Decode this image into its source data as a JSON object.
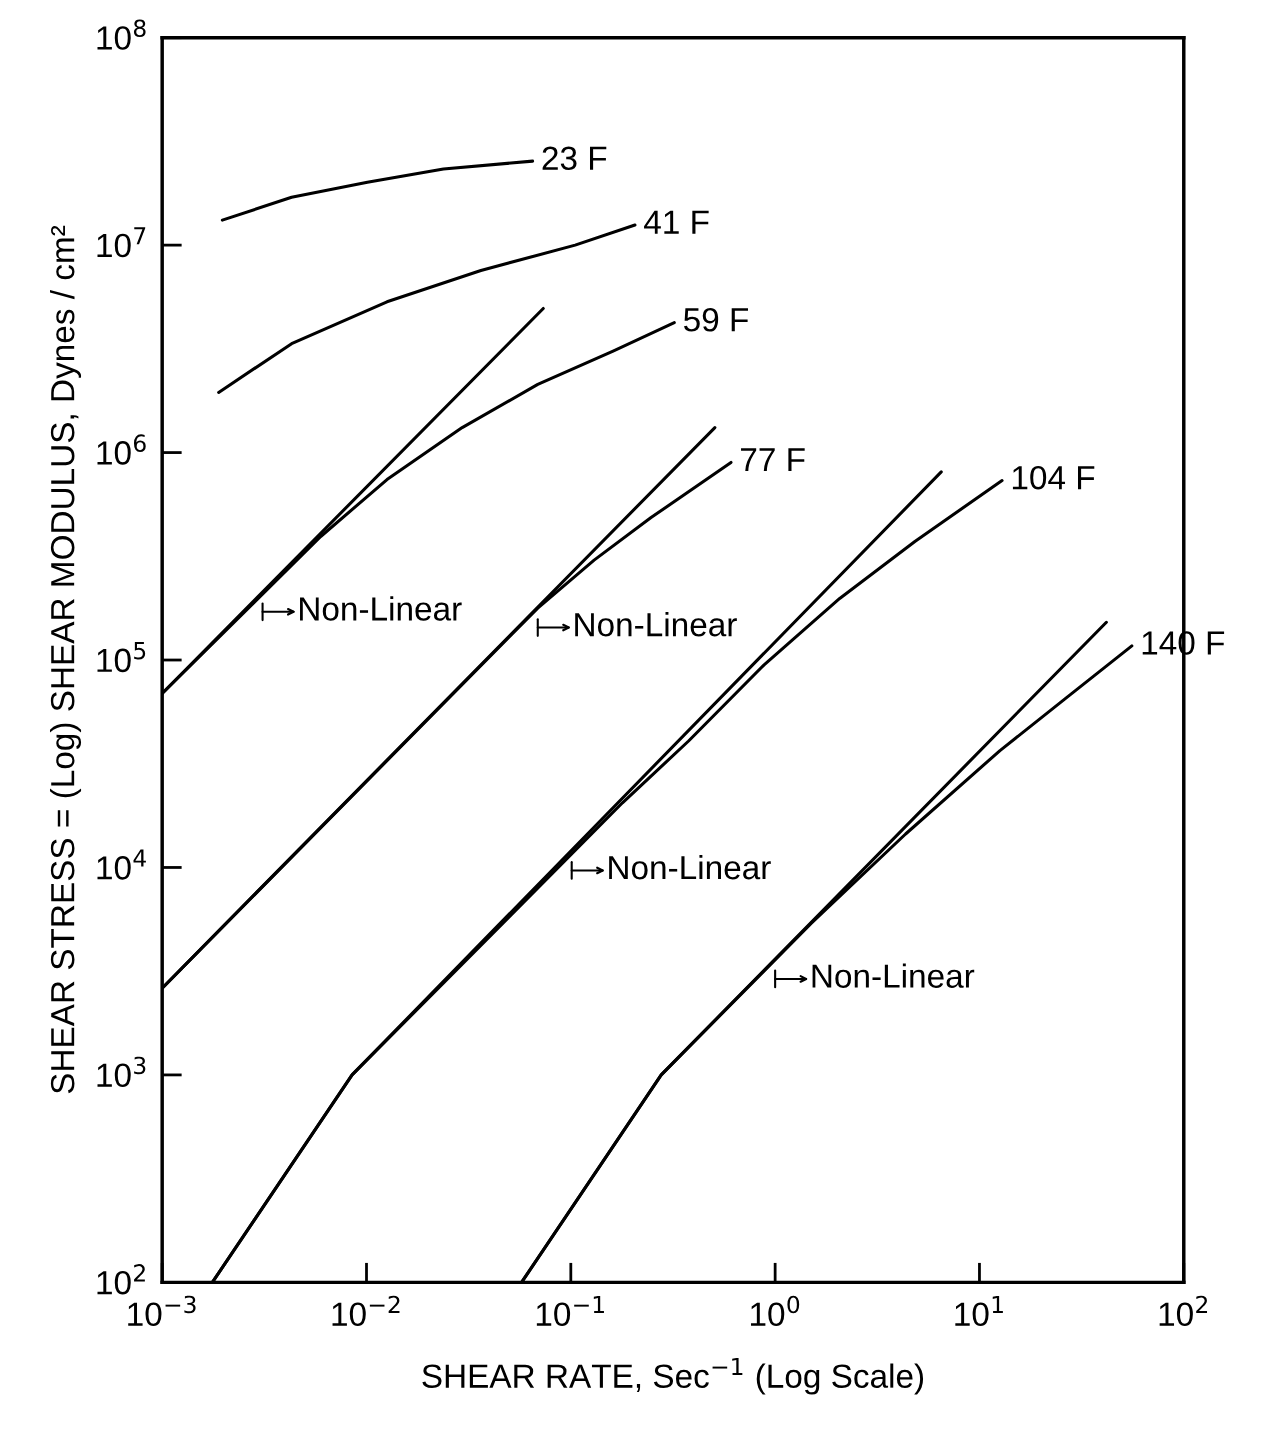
{
  "chart_data": {
    "type": "line",
    "log": "xy",
    "grid": false,
    "legend": false,
    "marker": "none",
    "line_style": "solid",
    "xlabel": "SHEAR RATE, Sec$^{−1}$ (Log Scale)",
    "ylabel": "SHEAR STRESS = (Log) SHEAR MODULUS, Dynes / cm²",
    "xlim": [
      0.001,
      100
    ],
    "ylim": [
      100,
      100000000
    ],
    "xticks": [
      {
        "value": 0.001,
        "label": "10$^{−3}$"
      },
      {
        "value": 0.01,
        "label": "10$^{−2}$"
      },
      {
        "value": 0.1,
        "label": "10$^{−1}$"
      },
      {
        "value": 1,
        "label": "10$^{0}$"
      },
      {
        "value": 10,
        "label": "10$^{1}$"
      },
      {
        "value": 100,
        "label": "10$^{2}$"
      }
    ],
    "yticks": [
      {
        "value": 100,
        "label": "10$^{2}$"
      },
      {
        "value": 1000,
        "label": "10$^{3}$"
      },
      {
        "value": 10000,
        "label": "10$^{4}$"
      },
      {
        "value": 100000,
        "label": "10$^{5}$"
      },
      {
        "value": 1000000,
        "label": "10$^{6}$"
      },
      {
        "value": 10000000,
        "label": "10$^{7}$"
      },
      {
        "value": 100000000,
        "label": "10$^{8}$"
      }
    ],
    "series": [
      {
        "name": "23 F",
        "color": "#000000",
        "x": [
          0.00197,
          0.0043,
          0.0101,
          0.0238,
          0.065
        ],
        "values": [
          13200000,
          17000000,
          20100000,
          23300000,
          25400000
        ]
      },
      {
        "name": "41 F",
        "color": "#000000",
        "x": [
          0.00189,
          0.0043,
          0.0126,
          0.0363,
          0.105,
          0.206
        ],
        "values": [
          1950000,
          3350000,
          5330000,
          7550000,
          10000000,
          12500000
        ]
      },
      {
        "color": "#000000",
        "x": [
          0.001,
          0.0733
        ],
        "values": [
          69000,
          4950000
        ]
      },
      {
        "name": "59 F",
        "color": "#000000",
        "x": [
          0.001,
          0.00597,
          0.0126,
          0.0294,
          0.0689,
          0.161,
          0.321
        ],
        "values": [
          69000,
          394000,
          741000,
          1320000,
          2130000,
          3080000,
          4230000
        ]
      },
      {
        "color": "#000000",
        "x": [
          0.001,
          0.507
        ],
        "values": [
          2620,
          1320000
        ]
      },
      {
        "name": "77 F",
        "color": "#000000",
        "x": [
          0.001,
          0.0689,
          0.13,
          0.247,
          0.608
        ],
        "values": [
          2620,
          178000,
          303000,
          486000,
          896000
        ]
      },
      {
        "color": "#000000",
        "x": [
          0.00176,
          0.0085,
          6.5
        ],
        "values": [
          100,
          1000,
          807000
        ]
      },
      {
        "name": "104 F",
        "color": "#000000",
        "x": [
          0.00176,
          0.0085,
          0.179,
          0.377,
          0.883,
          2.07,
          4.83,
          12.9
        ],
        "values": [
          100,
          1000,
          20500,
          40700,
          94800,
          198000,
          373000,
          733000
        ]
      },
      {
        "color": "#000000",
        "x": [
          0.0574,
          0.277,
          41.8
        ],
        "values": [
          100,
          1000,
          152000
        ]
      },
      {
        "name": "140 F",
        "color": "#000000",
        "x": [
          0.0574,
          0.277,
          1.5,
          4.35,
          12.6,
          26.5,
          55.7
        ],
        "values": [
          100,
          1000,
          5380,
          14500,
          36600,
          65500,
          117000
        ]
      }
    ],
    "annotations": [
      {
        "text": "Non-Linear",
        "x": 0.0031,
        "y": 212000
      },
      {
        "text": "Non-Linear",
        "x": 0.0689,
        "y": 178000
      },
      {
        "text": "Non-Linear",
        "x": 0.101,
        "y": 12000
      },
      {
        "text": "Non-Linear",
        "x": 1.0,
        "y": 3600
      }
    ]
  }
}
